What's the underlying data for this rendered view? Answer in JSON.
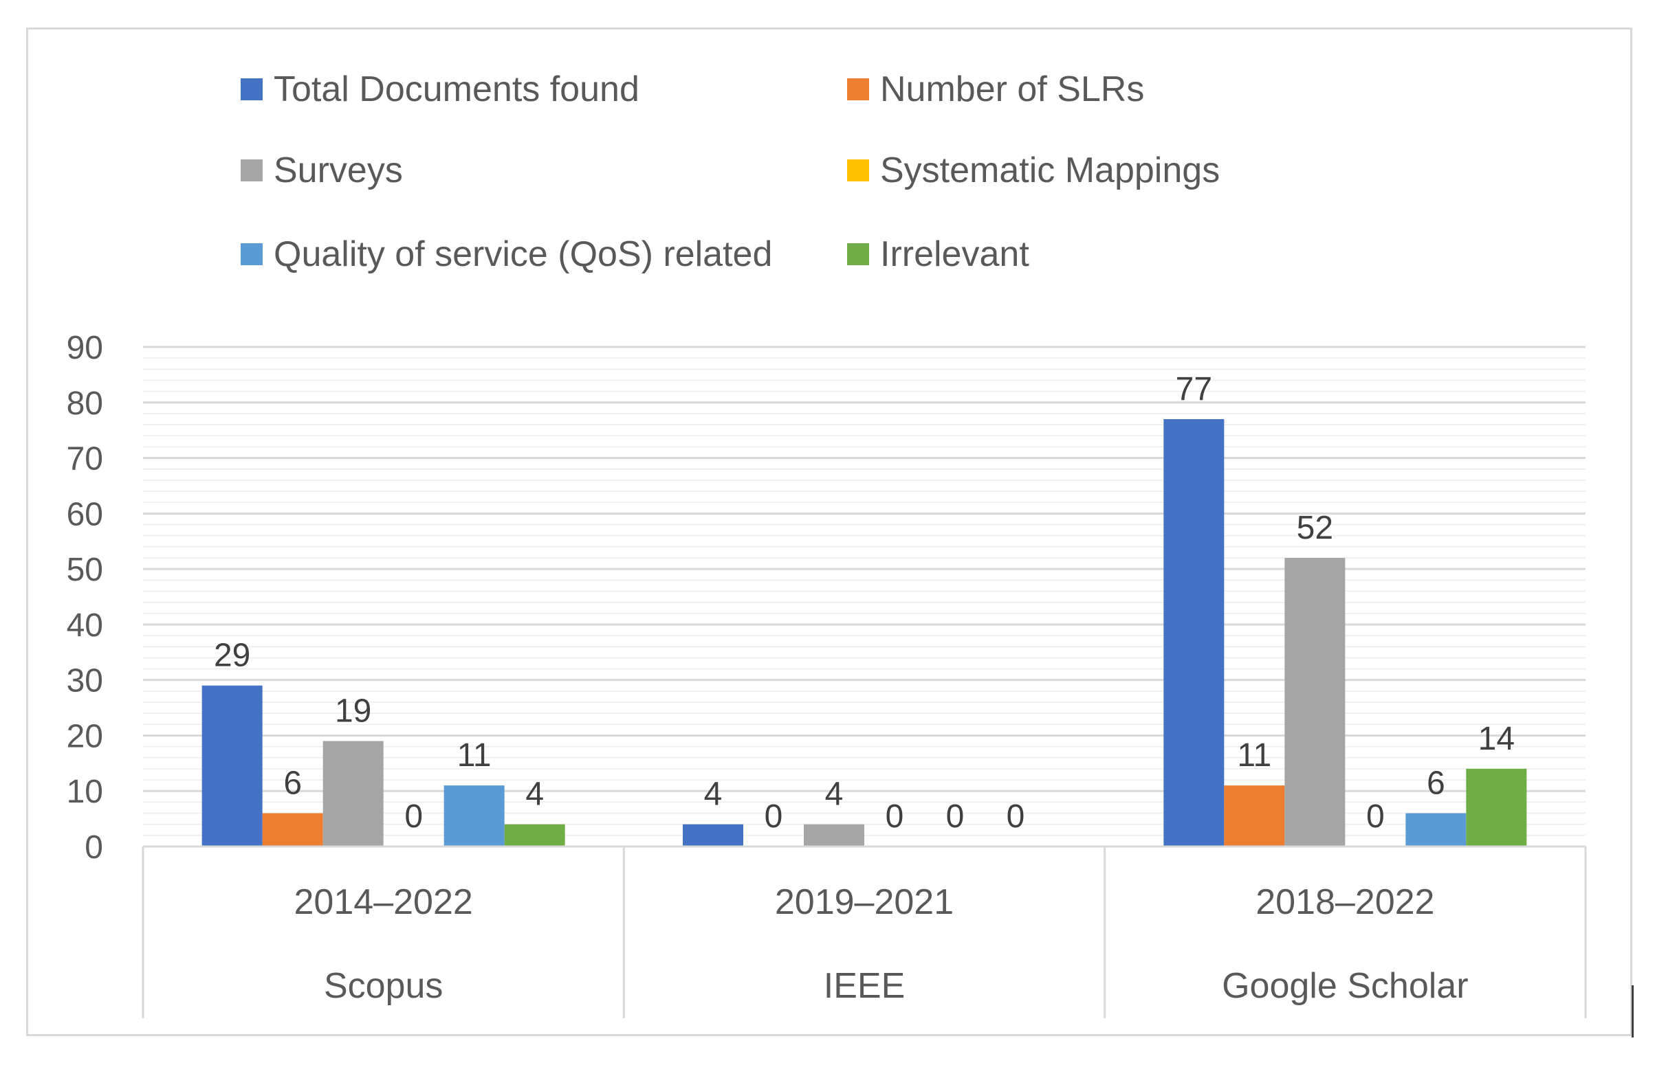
{
  "chart_data": {
    "type": "bar",
    "title": "",
    "xlabel": "",
    "ylabel": "",
    "ylim": [
      0,
      90
    ],
    "yticks": [
      0,
      10,
      20,
      30,
      40,
      50,
      60,
      70,
      80,
      90
    ],
    "grid": true,
    "legend_position": "top",
    "categories": [
      {
        "period": "2014–2022",
        "source": "Scopus"
      },
      {
        "period": "2019–2021",
        "source": "IEEE"
      },
      {
        "period": "2018–2022",
        "source": "Google Scholar"
      }
    ],
    "series": [
      {
        "name": "Total Documents found",
        "color": "#4472C4",
        "values": [
          29,
          4,
          77
        ]
      },
      {
        "name": "Number of SLRs",
        "color": "#ED7D31",
        "values": [
          6,
          0,
          11
        ]
      },
      {
        "name": "Surveys",
        "color": "#A5A5A5",
        "values": [
          19,
          4,
          52
        ]
      },
      {
        "name": "Systematic Mappings",
        "color": "#FFC000",
        "values": [
          0,
          0,
          0
        ]
      },
      {
        "name": "Quality of service (QoS) related",
        "color": "#5B9BD5",
        "values": [
          11,
          0,
          6
        ]
      },
      {
        "name": "Irrelevant",
        "color": "#70AD47",
        "values": [
          4,
          0,
          14
        ]
      }
    ]
  }
}
